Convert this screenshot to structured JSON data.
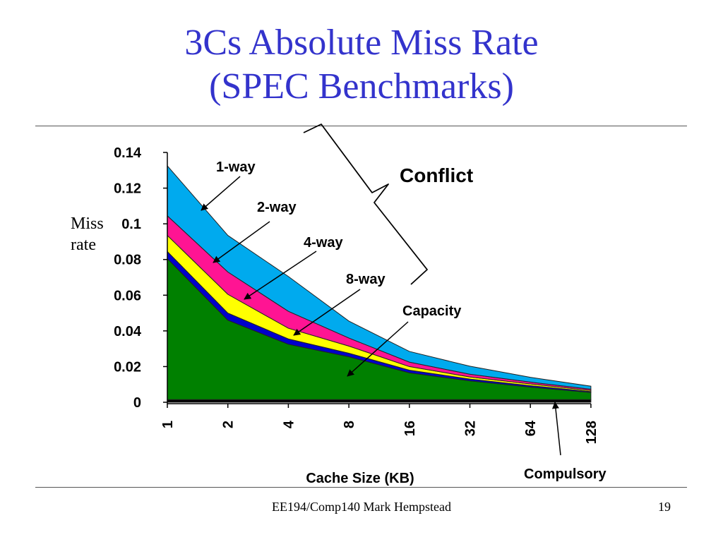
{
  "slide": {
    "title_lines": [
      "3Cs Absolute Miss Rate",
      "(SPEC Benchmarks)"
    ],
    "footer": "EE194/Comp140 Mark Hempstead",
    "page_number": "19",
    "title_color": "#3333cc"
  },
  "chart_data": {
    "type": "area",
    "stacked": true,
    "categories": [
      "1",
      "2",
      "4",
      "8",
      "16",
      "32",
      "64",
      "128"
    ],
    "xlabel": "Cache Size (KB)",
    "ylabel": [
      "Miss",
      "rate"
    ],
    "ylim": [
      0,
      0.14
    ],
    "yticks": [
      "0",
      "0.02",
      "0.04",
      "0.06",
      "0.08",
      "0.1",
      "0.12",
      "0.14"
    ],
    "series": [
      {
        "name": "Compulsory",
        "color": "#000000",
        "values": [
          0.0015,
          0.0015,
          0.0015,
          0.0015,
          0.0015,
          0.0015,
          0.0015,
          0.0015
        ]
      },
      {
        "name": "Capacity",
        "color": "#008000",
        "values": [
          0.079,
          0.0445,
          0.031,
          0.024,
          0.015,
          0.0105,
          0.007,
          0.004
        ]
      },
      {
        "name": "8-way",
        "color": "#0000cc",
        "values": [
          0.004,
          0.004,
          0.003,
          0.002,
          0.0015,
          0.001,
          0.0008,
          0.0005
        ]
      },
      {
        "name": "4-way",
        "color": "#ffff00",
        "values": [
          0.009,
          0.0105,
          0.006,
          0.004,
          0.002,
          0.0012,
          0.001,
          0.0006
        ]
      },
      {
        "name": "2-way",
        "color": "#ff1493",
        "values": [
          0.011,
          0.0125,
          0.0095,
          0.0045,
          0.0025,
          0.0015,
          0.001,
          0.0007
        ]
      },
      {
        "name": "1-way",
        "color": "#00aaee",
        "values": [
          0.028,
          0.0205,
          0.0195,
          0.0095,
          0.006,
          0.0045,
          0.0027,
          0.0017
        ]
      }
    ],
    "annotations": {
      "conflict": "Conflict",
      "capacity": "Capacity",
      "compulsory": "Compulsory",
      "way_labels": [
        "1-way",
        "2-way",
        "4-way",
        "8-way"
      ]
    }
  }
}
